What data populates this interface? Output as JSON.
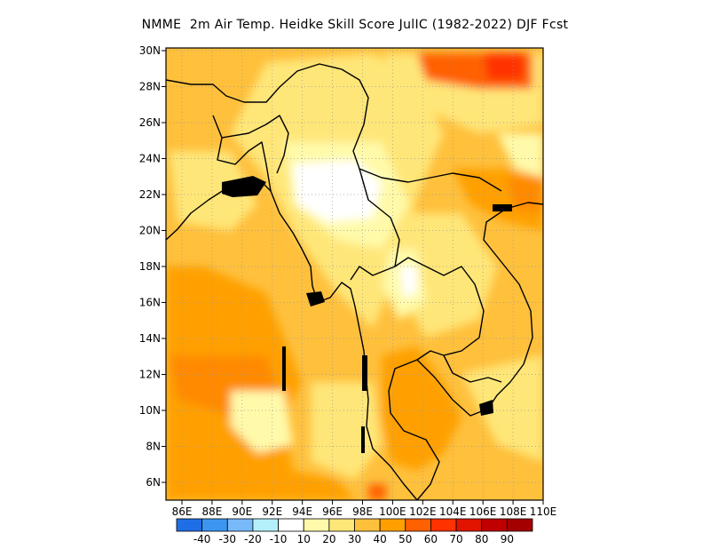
{
  "title": "NMME  2m Air Temp. Heidke Skill Score JulIC (1982-2022) DJF Fcst",
  "lat_labels": [
    "30N",
    "28N",
    "26N",
    "24N",
    "22N",
    "20N",
    "18N",
    "16N",
    "14N",
    "12N",
    "10N",
    "8N",
    "6N"
  ],
  "lon_labels": [
    "86E",
    "88E",
    "90E",
    "92E",
    "94E",
    "96E",
    "98E",
    "100E",
    "102E",
    "104E",
    "106E",
    "108E",
    "110E"
  ],
  "colorbar": {
    "colors": [
      "#1e6ee6",
      "#3c96f0",
      "#78b9fa",
      "#b4f0fa",
      "#ffffff",
      "#fffaaa",
      "#ffe678",
      "#ffc03c",
      "#ffa000",
      "#ff6000",
      "#ff3200",
      "#e11400",
      "#c00000",
      "#a50000"
    ],
    "labels": [
      "-40",
      "-30",
      "-20",
      "-10",
      "10",
      "20",
      "30",
      "40",
      "50",
      "60",
      "70",
      "80",
      "90"
    ]
  },
  "colors": {
    "frame": "#000000",
    "grid": "#9a9a9a",
    "coast": "#000000"
  }
}
